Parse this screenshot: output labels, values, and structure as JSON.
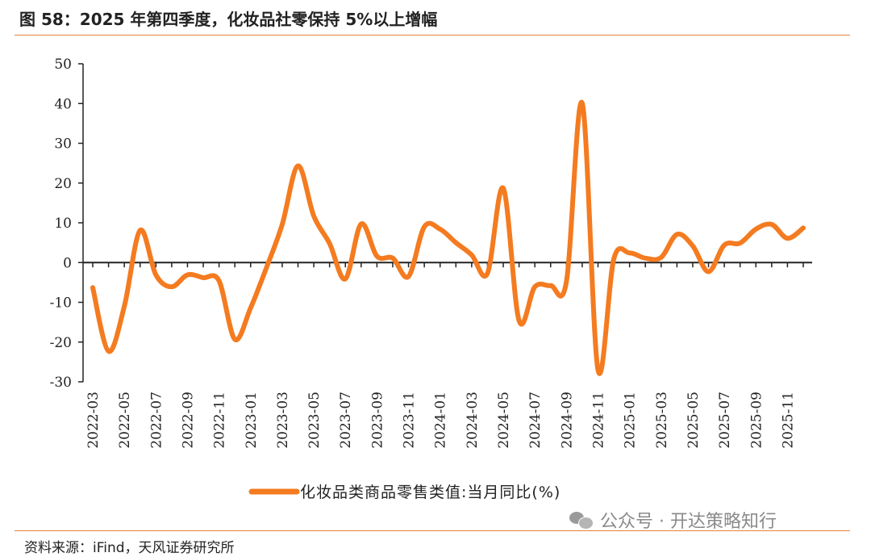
{
  "header": {
    "title": "图 58：2025 年第四季度，化妆品社零保持 5%以上增幅"
  },
  "footer": {
    "source": "资料来源：iFind，天风证券研究所"
  },
  "watermark": {
    "text": "公众号 · 开达策略知行",
    "icon": "wechat-icon"
  },
  "colors": {
    "series": "#f47b20",
    "rule": "#e8833a",
    "axis": "#222222"
  },
  "chart_data": {
    "type": "line",
    "title": "",
    "xlabel": "",
    "ylabel": "",
    "ylim": [
      -30,
      50
    ],
    "yticks": [
      -30,
      -20,
      -10,
      0,
      10,
      20,
      30,
      40,
      50
    ],
    "grid": false,
    "legend_position": "bottom-center",
    "x_tick_labels": [
      "2022-03",
      "2022-05",
      "2022-07",
      "2022-09",
      "2022-11",
      "2023-01",
      "2023-03",
      "2023-05",
      "2023-07",
      "2023-09",
      "2023-11",
      "2024-01",
      "2024-03",
      "2024-05",
      "2024-07",
      "2024-09",
      "2024-11",
      "2025-01",
      "2025-03",
      "2025-05",
      "2025-07",
      "2025-09",
      "2025-11"
    ],
    "categories": [
      "2022-03",
      "2022-04",
      "2022-05",
      "2022-06",
      "2022-07",
      "2022-08",
      "2022-09",
      "2022-10",
      "2022-11",
      "2022-12",
      "2023-01",
      "2023-02",
      "2023-03",
      "2023-04",
      "2023-05",
      "2023-06",
      "2023-07",
      "2023-08",
      "2023-09",
      "2023-10",
      "2023-11",
      "2023-12",
      "2024-01",
      "2024-02",
      "2024-03",
      "2024-04",
      "2024-05",
      "2024-06",
      "2024-07",
      "2024-08",
      "2024-09",
      "2024-10",
      "2024-11",
      "2024-12",
      "2025-01",
      "2025-02",
      "2025-03",
      "2025-04",
      "2025-05",
      "2025-06",
      "2025-07",
      "2025-08",
      "2025-09",
      "2025-10",
      "2025-11",
      "2025-12"
    ],
    "series": [
      {
        "name": "化妆品类商品零售类值:当月同比(%)",
        "values": [
          -6.3,
          -22.3,
          -11.0,
          8.1,
          -3.1,
          -6.1,
          -3.1,
          -3.8,
          -4.6,
          -19.3,
          -11.4,
          -1.3,
          9.6,
          24.3,
          11.7,
          4.8,
          -4.1,
          9.7,
          1.6,
          1.1,
          -3.5,
          9.0,
          8.4,
          5.0,
          1.9,
          -2.7,
          18.7,
          -14.6,
          -6.1,
          -5.8,
          -4.8,
          40.1,
          -27.0,
          0.9,
          2.4,
          1.1,
          1.3,
          7.1,
          4.2,
          -2.3,
          4.4,
          4.9,
          8.4,
          9.6,
          6.1,
          8.7
        ]
      }
    ]
  }
}
